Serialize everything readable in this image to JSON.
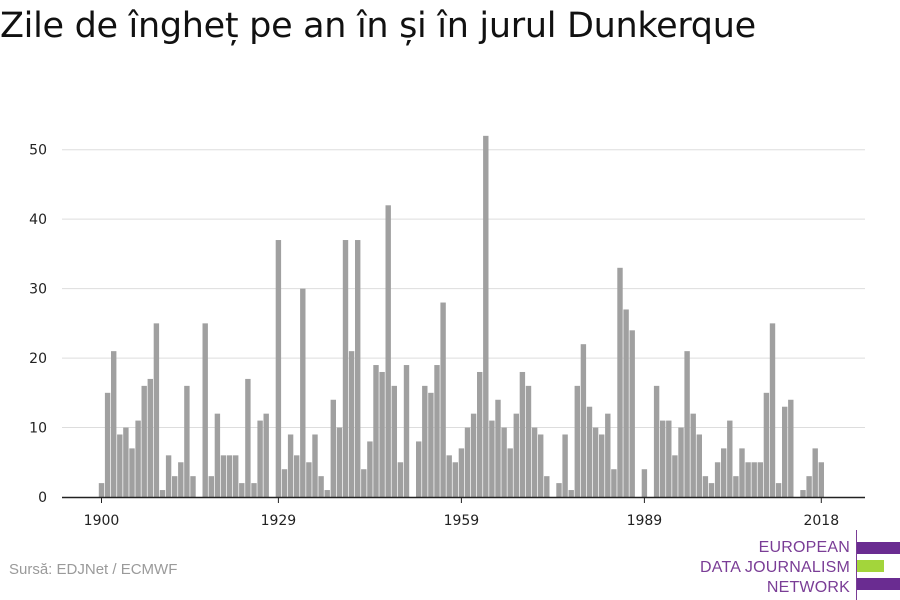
{
  "title": "Zile de îngheț pe an în și în jurul Dunkerque",
  "source": "Sursă: EDJNet / ECMWF",
  "logo": {
    "lines": [
      "EUROPEAN",
      "DATA JOURNALISM",
      "NETWORK"
    ],
    "purple": "#6a2c91",
    "green": "#a3d53b"
  },
  "colors": {
    "bar": "#a0a0a0",
    "grid": "#dddddd",
    "axis": "#222222",
    "text": "#222222"
  },
  "chart_data": {
    "type": "bar",
    "title": "Zile de îngheț pe an în și în jurul Dunkerque",
    "xlabel": "",
    "ylabel": "",
    "ylim": [
      0,
      55
    ],
    "yticks": [
      0,
      10,
      20,
      30,
      40,
      50
    ],
    "xticks": [
      1900,
      1929,
      1959,
      1989,
      2018
    ],
    "grid": true,
    "legend": "none",
    "start_year": 1900,
    "end_year": 2018,
    "values": [
      2,
      15,
      21,
      9,
      10,
      7,
      11,
      16,
      17,
      25,
      1,
      6,
      3,
      5,
      16,
      3,
      0,
      25,
      3,
      12,
      6,
      6,
      6,
      2,
      17,
      2,
      11,
      12,
      0,
      37,
      4,
      9,
      6,
      30,
      5,
      9,
      3,
      1,
      14,
      10,
      37,
      21,
      37,
      4,
      8,
      19,
      18,
      42,
      16,
      5,
      19,
      0,
      8,
      16,
      15,
      19,
      28,
      6,
      5,
      7,
      10,
      12,
      18,
      52,
      11,
      14,
      10,
      7,
      12,
      18,
      16,
      10,
      9,
      3,
      0,
      2,
      9,
      1,
      16,
      22,
      13,
      10,
      9,
      12,
      4,
      33,
      27,
      24,
      0,
      4,
      0,
      16,
      11,
      11,
      6,
      10,
      21,
      12,
      9,
      3,
      2,
      5,
      7,
      11,
      3,
      7,
      5,
      5,
      5,
      15,
      25,
      2,
      13,
      14,
      0,
      1,
      3,
      7,
      5
    ]
  }
}
